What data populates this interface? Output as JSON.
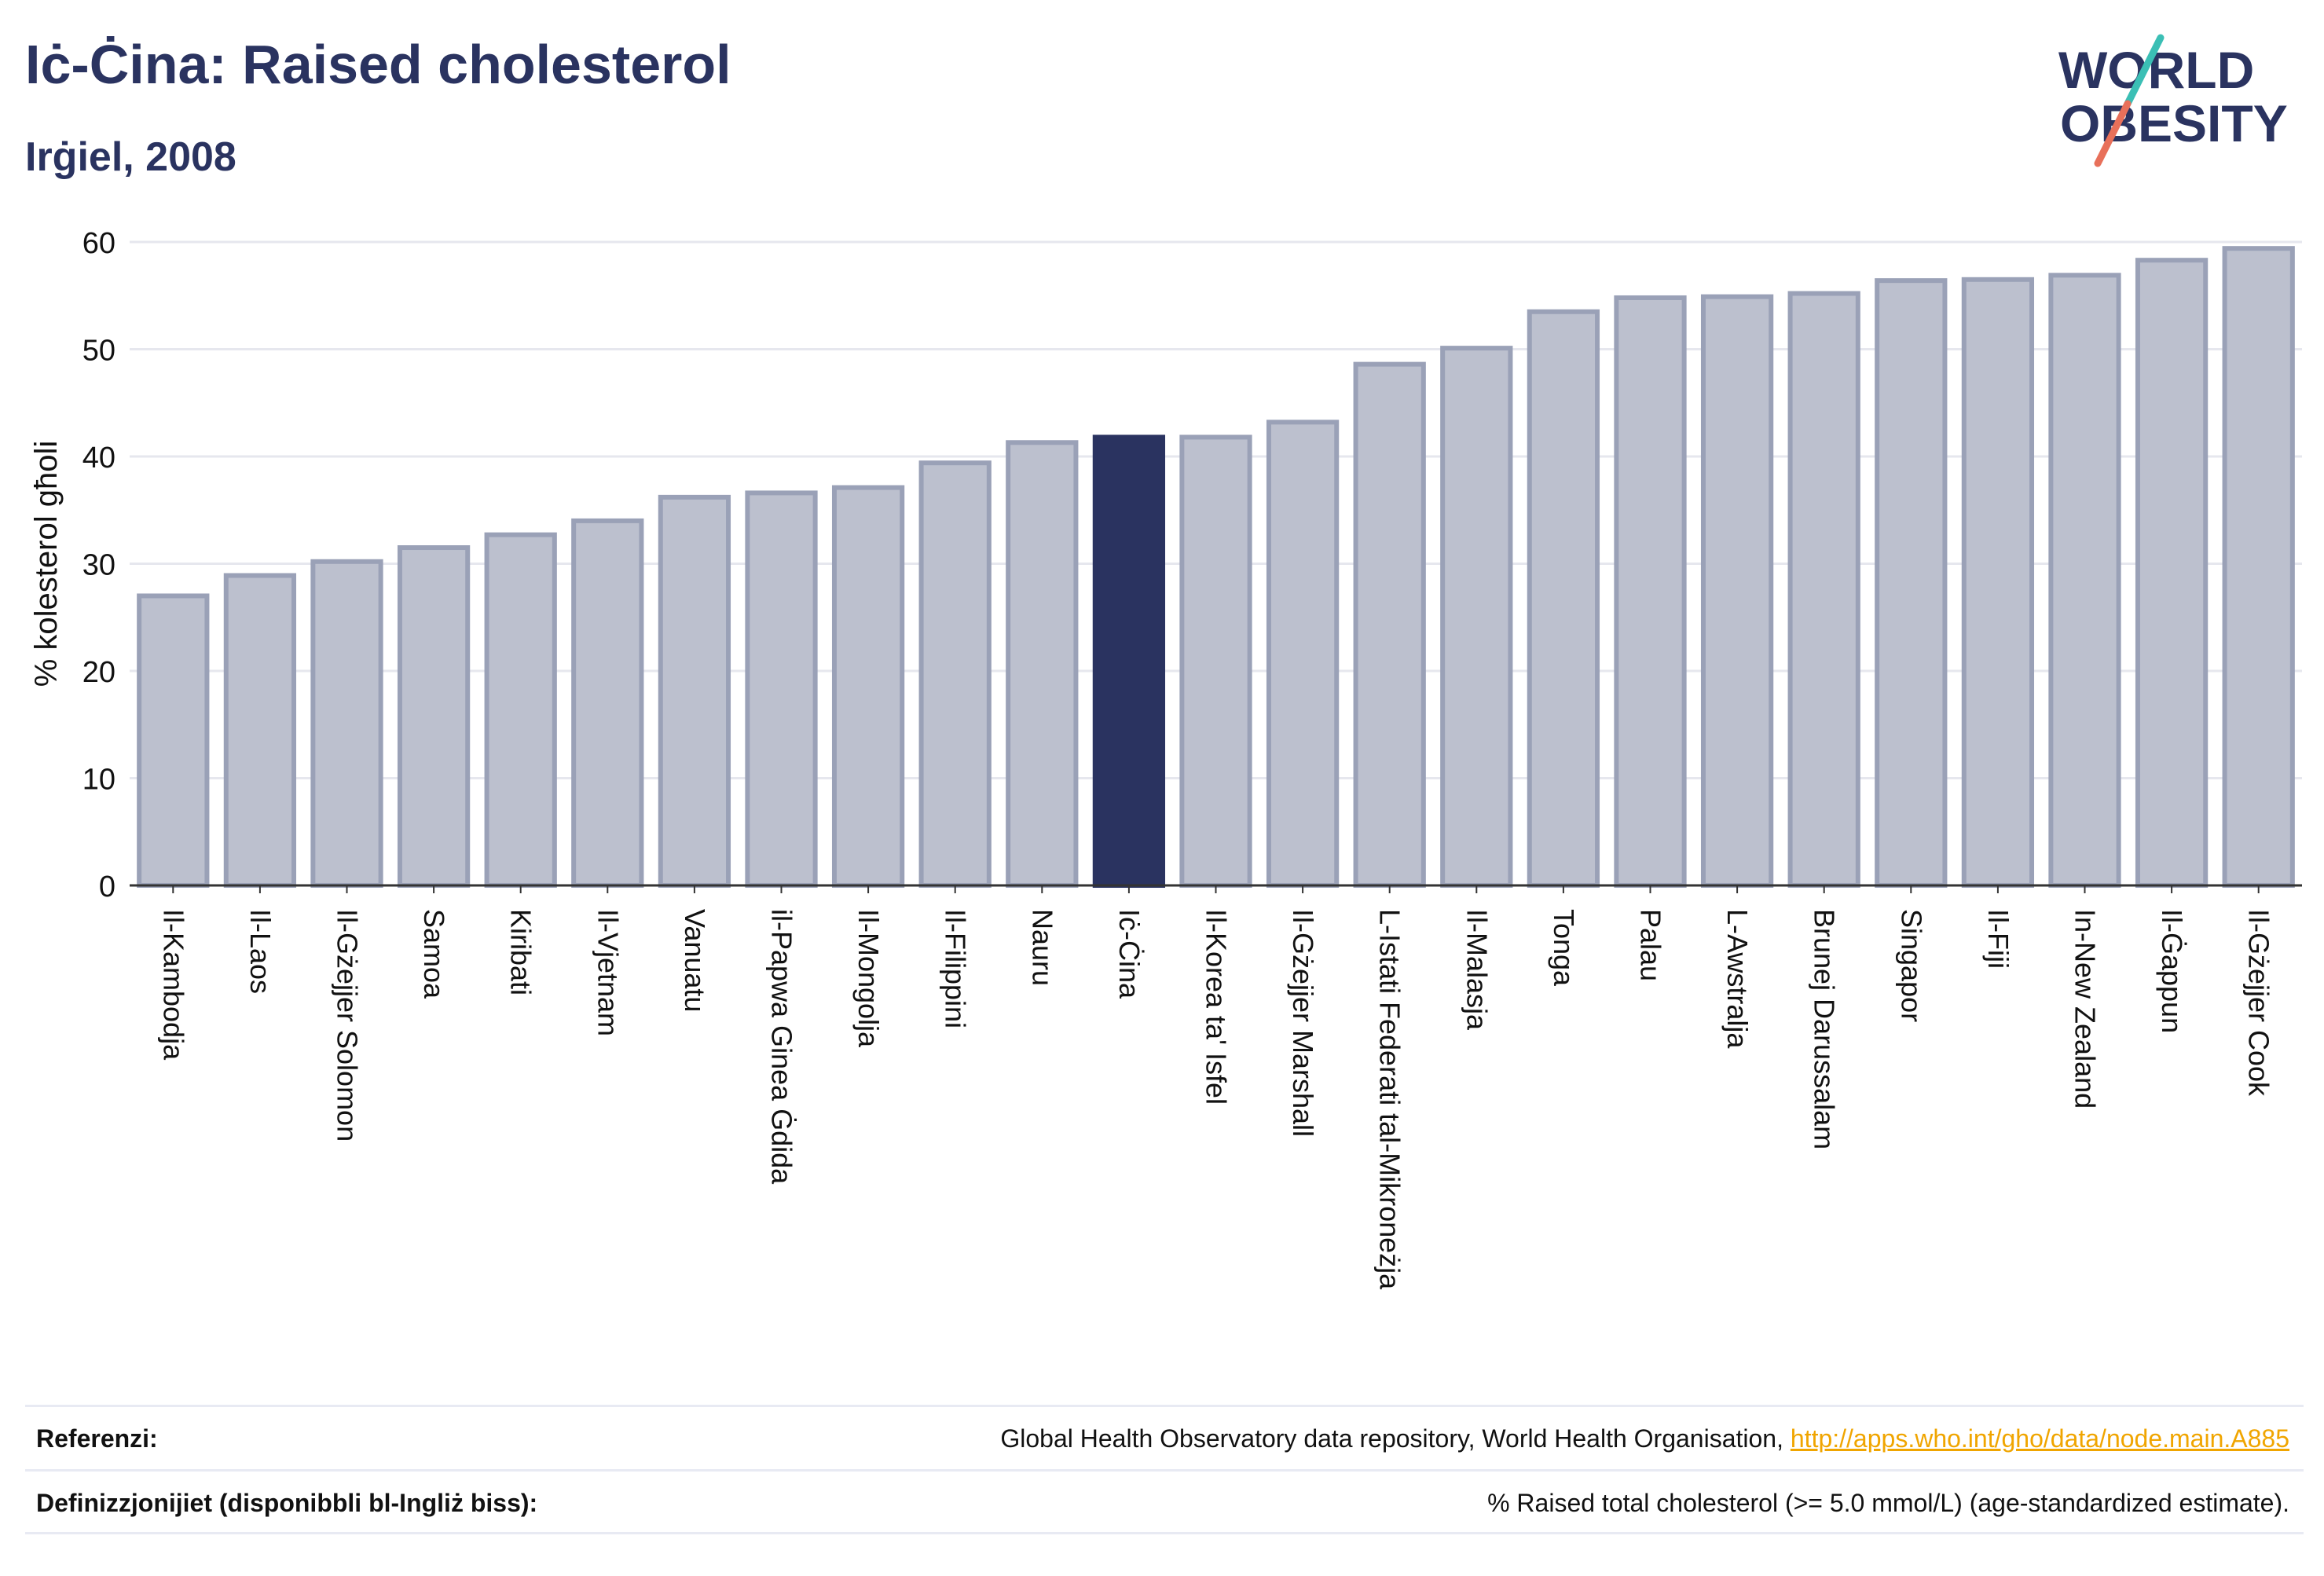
{
  "header": {
    "title": "Iċ-Ċina: Raised cholesterol",
    "subtitle": "Irġiel, 2008",
    "logo_line1": "WORLD",
    "logo_line2": "OBESITY"
  },
  "colors": {
    "highlight": "#2a3360",
    "bar_fill": "#bcc0ce",
    "bar_stroke": "#9aa1b7",
    "axis_text": "#111111",
    "grid": "#e6e7ee",
    "logo_teal": "#3bbfb5",
    "logo_coral": "#e8705a"
  },
  "chart_data": {
    "type": "bar",
    "ylabel": "% kolesterol għoli",
    "ylim": [
      0,
      60
    ],
    "yticks": [
      0,
      10,
      20,
      30,
      40,
      50,
      60
    ],
    "grid": true,
    "highlight_category": "Iċ-Ċina",
    "categories": [
      "Il-Kambodja",
      "Il-Laos",
      "Il-Gżejjer Solomon",
      "Samoa",
      "Kiribati",
      "Il-Vjetnam",
      "Vanuatu",
      "il-Papwa Ginea Ġdida",
      "Il-Mongolja",
      "Il-Filippini",
      "Nauru",
      "Iċ-Ċina",
      "Il-Korea ta' Isfel",
      "Il-Gżejjer Marshall",
      "L-Istati Federati tal-Mikroneżja",
      "Il-Malasja",
      "Tonga",
      "Palau",
      "L-Awstralja",
      "Brunej Darussalam",
      "Singapor",
      "Il-Fiji",
      "In-New Zealand",
      "Il-Ġappun",
      "Il-Gżejjer Cook"
    ],
    "values": [
      27.0,
      28.9,
      30.2,
      31.5,
      32.7,
      34.0,
      36.2,
      36.6,
      37.1,
      39.4,
      41.3,
      41.8,
      41.8,
      43.2,
      48.6,
      50.1,
      53.5,
      54.8,
      54.9,
      55.2,
      56.4,
      56.5,
      56.9,
      58.3,
      59.4
    ]
  },
  "footer": {
    "references_label": "Referenzi:",
    "references_text": "Global Health Observatory data repository, World Health Organisation, ",
    "references_link": "http://apps.who.int/gho/data/node.main.A885",
    "definitions_label": "Definizzjonijiet (disponibbli bl-Ingliż biss):",
    "definitions_text": "% Raised total cholesterol (>= 5.0 mmol/L) (age-standardized estimate)."
  }
}
